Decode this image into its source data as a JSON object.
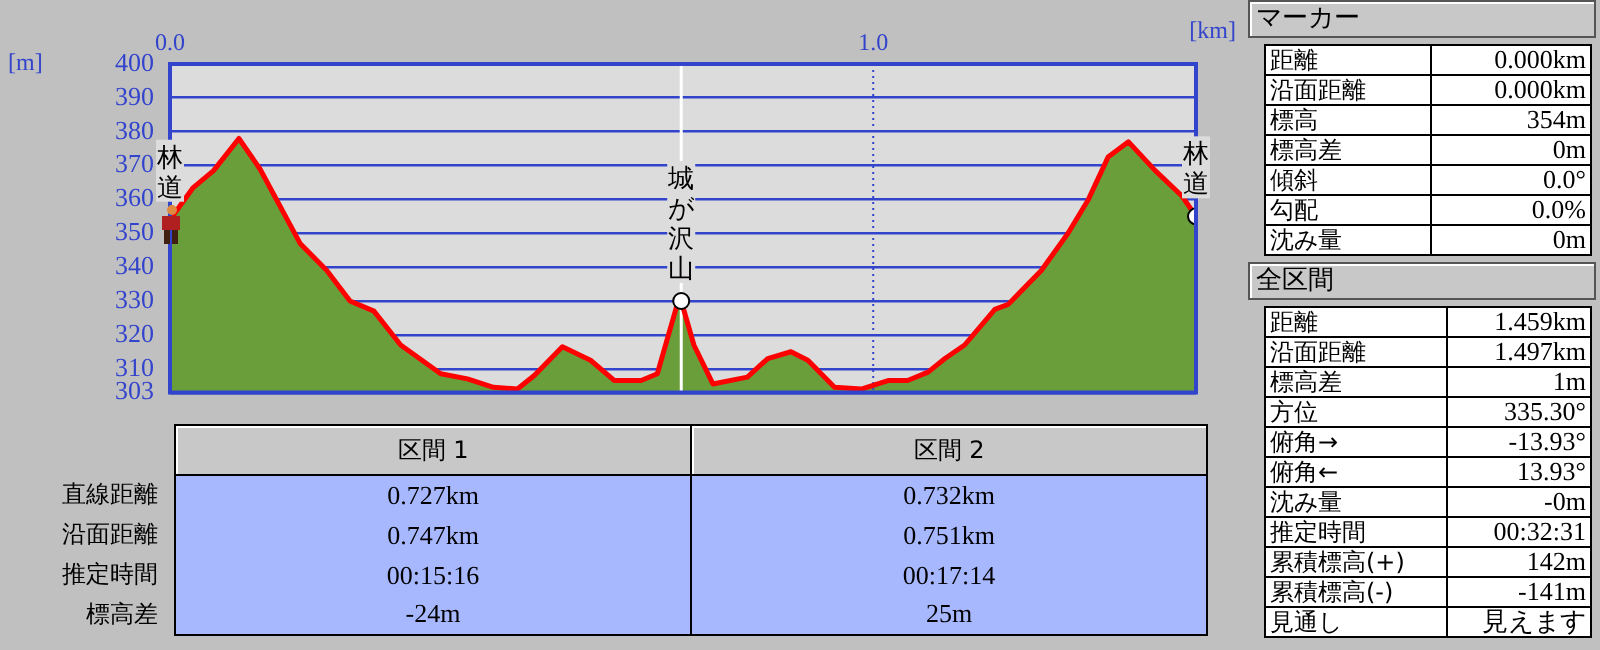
{
  "chart_data": [
    {
      "type": "area",
      "xlabel": "[km]",
      "ylabel": "[m]",
      "xlim": [
        0,
        1.459
      ],
      "xticks": [
        {
          "value": 0,
          "label": "0.0"
        },
        {
          "value": 1,
          "label": "1.0"
        }
      ],
      "ylim": [
        303,
        400
      ],
      "yticks": [
        303,
        310,
        320,
        330,
        340,
        350,
        360,
        370,
        380,
        390,
        400
      ],
      "grid": "y",
      "series": [
        {
          "type": "area",
          "color": "#6a9e3a",
          "marker": "none",
          "x": [
            0,
            0.033,
            0.062,
            0.098,
            0.128,
            0.185,
            0.223,
            0.256,
            0.29,
            0.328,
            0.385,
            0.423,
            0.46,
            0.494,
            0.518,
            0.558,
            0.598,
            0.632,
            0.67,
            0.693,
            0.722,
            0.727,
            0.745,
            0.772,
            0.821,
            0.85,
            0.883,
            0.907,
            0.945,
            0.983,
            1.021,
            1.049,
            1.078,
            1.102,
            1.13,
            1.173,
            1.192,
            1.239,
            1.277,
            1.306,
            1.334,
            1.363,
            1.401,
            1.439,
            1.459
          ],
          "values": [
            354,
            363.5,
            368.5,
            378,
            369,
            347,
            339,
            330,
            327,
            317,
            308.5,
            307,
            304.5,
            304,
            308,
            316.5,
            312.5,
            306.5,
            306.5,
            308.5,
            329.5,
            330,
            317,
            305.5,
            307.5,
            313,
            315,
            312.5,
            304.5,
            304,
            306.5,
            306.5,
            309,
            313,
            317,
            327.5,
            329,
            339,
            350,
            360,
            372.5,
            377,
            368.5,
            361,
            355
          ]
        },
        {
          "type": "line",
          "color": "#ff0000",
          "marker": "none",
          "x": [
            0,
            0.033,
            0.062,
            0.098,
            0.128,
            0.185,
            0.223,
            0.256,
            0.29,
            0.328,
            0.385,
            0.423,
            0.46,
            0.494,
            0.518,
            0.558,
            0.598,
            0.632,
            0.67,
            0.693,
            0.722,
            0.727,
            0.745,
            0.772,
            0.821,
            0.85,
            0.883,
            0.907,
            0.945,
            0.983,
            1.021,
            1.049,
            1.078,
            1.102,
            1.13,
            1.173,
            1.192,
            1.239,
            1.277,
            1.306,
            1.334,
            1.363,
            1.401,
            1.439,
            1.459
          ],
          "values": [
            354,
            363.5,
            368.5,
            378,
            369,
            347,
            339,
            330,
            327,
            317,
            308.5,
            307,
            304.5,
            304,
            308,
            316.5,
            312.5,
            306.5,
            306.5,
            308.5,
            329.5,
            330,
            317,
            305.5,
            307.5,
            313,
            315,
            312.5,
            304.5,
            304,
            306.5,
            306.5,
            309,
            313,
            317,
            327.5,
            329,
            339,
            350,
            360,
            372.5,
            377,
            368.5,
            361,
            355
          ]
        },
        {
          "type": "scatter",
          "color": "#ffffff",
          "marker": "circle",
          "x": [
            0.727,
            1.459
          ],
          "values": [
            330,
            355
          ]
        }
      ],
      "ref_lines": [
        {
          "axis": "x",
          "value": 0.727,
          "color": "#ffffff"
        },
        {
          "axis": "x",
          "value": 1,
          "color": "#3344cc",
          "line_style": "dotted"
        }
      ],
      "annotations": [
        {
          "text": "林道",
          "x": 0,
          "y": 354
        },
        {
          "text": "城が沢山",
          "x": 0.727,
          "y": 330
        },
        {
          "text": "林道",
          "x": 1.459,
          "y": 355
        }
      ]
    },
    {
      "type": "other",
      "categories": [
        "区間 1",
        "区間 2"
      ],
      "y_categories": [
        "直線距離",
        "沿面距離",
        "推定時間",
        "標高差"
      ],
      "cell_labels": [
        [
          "0.727km",
          "0.732km"
        ],
        [
          "0.747km",
          "0.751km"
        ],
        [
          "00:15:16",
          "00:17:14"
        ],
        [
          "-24m",
          "25m"
        ]
      ]
    },
    {
      "type": "other",
      "title": "マーカー",
      "y_categories": [
        "距離",
        "沿面距離",
        "標高",
        "標高差",
        "傾斜",
        "勾配",
        "沈み量"
      ],
      "cell_labels": [
        [
          "0.000km"
        ],
        [
          "0.000km"
        ],
        [
          "354m"
        ],
        [
          "0m"
        ],
        [
          "0.0°"
        ],
        [
          "0.0%"
        ],
        [
          "0m"
        ]
      ]
    },
    {
      "type": "other",
      "title": "全区間",
      "y_categories": [
        "距離",
        "沿面距離",
        "標高差",
        "方位",
        "俯角→",
        "俯角←",
        "沈み量",
        "推定時間",
        "累積標高(+)",
        "累積標高(-)",
        "見通し"
      ],
      "cell_labels": [
        [
          "1.459km"
        ],
        [
          "1.497km"
        ],
        [
          "1m"
        ],
        [
          "335.30°"
        ],
        [
          "-13.93°"
        ],
        [
          "13.93°"
        ],
        [
          "-0m"
        ],
        [
          "00:32:31"
        ],
        [
          "142m"
        ],
        [
          "-141m"
        ],
        [
          "見えます"
        ]
      ]
    }
  ]
}
